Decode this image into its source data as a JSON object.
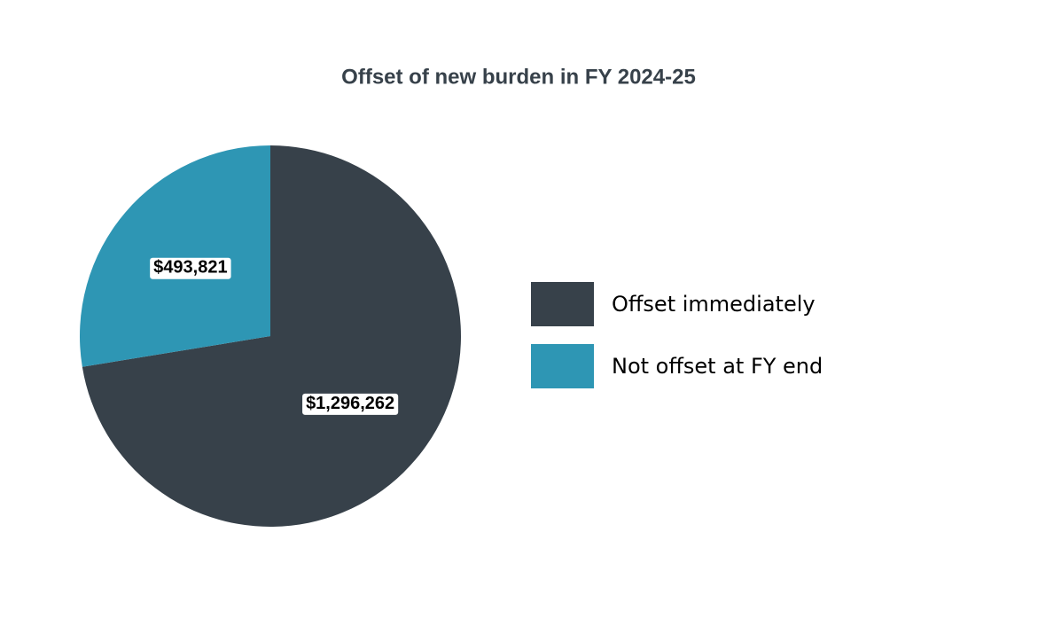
{
  "chart_data": {
    "type": "pie",
    "title": "Offset of new burden in FY 2024-25",
    "categories": [
      "Offset immediately",
      "Not offset at FY end"
    ],
    "values": [
      1296262,
      493821
    ],
    "value_labels": [
      "$1,296,262",
      "$493,821"
    ],
    "colors": [
      "#37414a",
      "#2e96b4"
    ],
    "legend": "right"
  }
}
